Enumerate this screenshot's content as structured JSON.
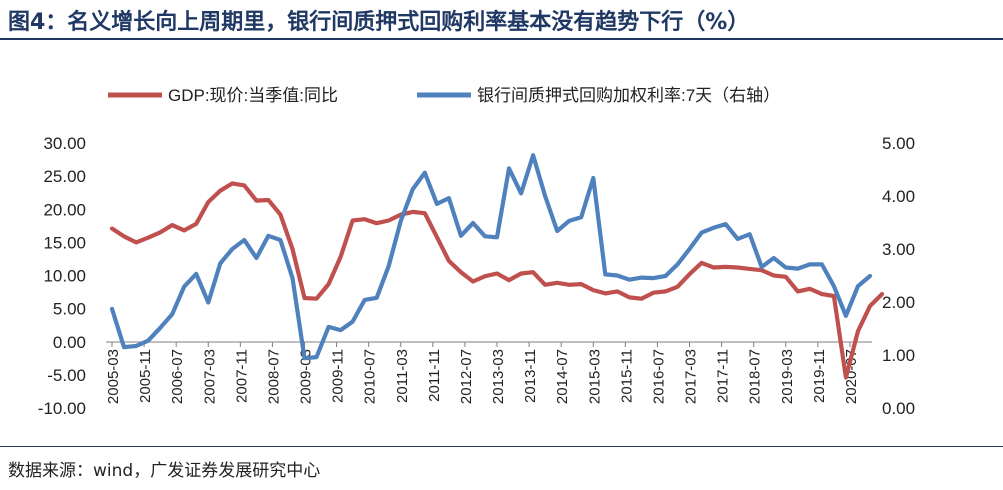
{
  "title": "图4：名义增长向上周期里，银行间质押式回购利率基本没有趋势下行（%）",
  "source": "数据来源：wind，广发证券发展研究中心",
  "colors": {
    "gdp": "#c0504d",
    "repo": "#4f81bd",
    "title": "#1f3864"
  },
  "chart_data": {
    "type": "line",
    "title": "",
    "legend": [
      "GDP:现价:当季值:同比",
      "银行间质押式回购加权利率:7天（右轴）"
    ],
    "legend_position": "top",
    "x_start": "2005-03",
    "x_tick_labels": [
      "2005-03",
      "2005-11",
      "2006-07",
      "2007-03",
      "2007-11",
      "2008-07",
      "2009-03",
      "2009-11",
      "2010-07",
      "2011-03",
      "2011-11",
      "2012-07",
      "2013-03",
      "2013-11",
      "2014-07",
      "2015-03",
      "2015-11",
      "2016-07",
      "2017-03",
      "2017-11",
      "2018-07",
      "2019-03",
      "2019-11",
      "2020-07"
    ],
    "y_left": {
      "min": -10,
      "max": 30,
      "step": 5,
      "tick_labels": [
        "-10.00",
        "-5.00",
        "0.00",
        "5.00",
        "10.00",
        "15.00",
        "20.00",
        "25.00",
        "30.00"
      ]
    },
    "y_right": {
      "min": 0,
      "max": 5,
      "step": 1,
      "tick_labels": [
        "0.00",
        "1.00",
        "2.00",
        "3.00",
        "4.00",
        "5.00"
      ]
    },
    "series": [
      {
        "name": "GDP:现价:当季值:同比",
        "axis": "left",
        "frequency": "quarterly",
        "points": [
          [
            "2005-03",
            17.1
          ],
          [
            "2005-06",
            15.9
          ],
          [
            "2005-09",
            15.0
          ],
          [
            "2005-12",
            15.7
          ],
          [
            "2006-03",
            16.5
          ],
          [
            "2006-06",
            17.6
          ],
          [
            "2006-09",
            16.8
          ],
          [
            "2006-12",
            17.8
          ],
          [
            "2007-03",
            21.1
          ],
          [
            "2007-06",
            22.8
          ],
          [
            "2007-09",
            23.9
          ],
          [
            "2007-12",
            23.6
          ],
          [
            "2008-03",
            21.3
          ],
          [
            "2008-06",
            21.4
          ],
          [
            "2008-09",
            19.2
          ],
          [
            "2008-12",
            14.0
          ],
          [
            "2009-03",
            6.6
          ],
          [
            "2009-06",
            6.5
          ],
          [
            "2009-09",
            8.7
          ],
          [
            "2009-12",
            12.8
          ],
          [
            "2010-03",
            18.3
          ],
          [
            "2010-06",
            18.5
          ],
          [
            "2010-09",
            17.9
          ],
          [
            "2010-12",
            18.3
          ],
          [
            "2011-03",
            19.2
          ],
          [
            "2011-06",
            19.6
          ],
          [
            "2011-09",
            19.4
          ],
          [
            "2011-12",
            15.8
          ],
          [
            "2012-03",
            12.2
          ],
          [
            "2012-06",
            10.5
          ],
          [
            "2012-09",
            9.1
          ],
          [
            "2012-12",
            9.9
          ],
          [
            "2013-03",
            10.3
          ],
          [
            "2013-06",
            9.3
          ],
          [
            "2013-09",
            10.3
          ],
          [
            "2013-12",
            10.5
          ],
          [
            "2014-03",
            8.6
          ],
          [
            "2014-06",
            8.9
          ],
          [
            "2014-09",
            8.6
          ],
          [
            "2014-12",
            8.7
          ],
          [
            "2015-03",
            7.8
          ],
          [
            "2015-06",
            7.3
          ],
          [
            "2015-09",
            7.6
          ],
          [
            "2015-12",
            6.7
          ],
          [
            "2016-03",
            6.5
          ],
          [
            "2016-06",
            7.4
          ],
          [
            "2016-09",
            7.6
          ],
          [
            "2016-12",
            8.3
          ],
          [
            "2017-03",
            10.2
          ],
          [
            "2017-06",
            11.9
          ],
          [
            "2017-09",
            11.2
          ],
          [
            "2017-12",
            11.3
          ],
          [
            "2018-03",
            11.2
          ],
          [
            "2018-06",
            11.0
          ],
          [
            "2018-09",
            10.8
          ],
          [
            "2018-12",
            10.0
          ],
          [
            "2019-03",
            9.8
          ],
          [
            "2019-06",
            7.6
          ],
          [
            "2019-09",
            8.0
          ],
          [
            "2019-12",
            7.2
          ],
          [
            "2020-03",
            6.9
          ],
          [
            "2020-06",
            -5.4
          ],
          [
            "2020-09",
            1.6
          ],
          [
            "2020-12",
            5.4
          ],
          [
            "2021-03",
            7.2
          ]
        ]
      },
      {
        "name": "银行间质押式回购加权利率:7天（右轴）",
        "axis": "right",
        "frequency": "quarterly",
        "points": [
          [
            "2005-03",
            1.87
          ],
          [
            "2005-06",
            1.15
          ],
          [
            "2005-09",
            1.17
          ],
          [
            "2005-12",
            1.27
          ],
          [
            "2006-03",
            1.51
          ],
          [
            "2006-06",
            1.77
          ],
          [
            "2006-09",
            2.29
          ],
          [
            "2006-12",
            2.53
          ],
          [
            "2007-03",
            1.99
          ],
          [
            "2007-06",
            2.73
          ],
          [
            "2007-09",
            3.0
          ],
          [
            "2007-12",
            3.17
          ],
          [
            "2008-03",
            2.83
          ],
          [
            "2008-06",
            3.25
          ],
          [
            "2008-09",
            3.17
          ],
          [
            "2008-12",
            2.45
          ],
          [
            "2009-03",
            0.94
          ],
          [
            "2009-06",
            0.96
          ],
          [
            "2009-09",
            1.53
          ],
          [
            "2009-12",
            1.47
          ],
          [
            "2010-03",
            1.63
          ],
          [
            "2010-06",
            2.04
          ],
          [
            "2010-09",
            2.08
          ],
          [
            "2010-12",
            2.68
          ],
          [
            "2011-03",
            3.53
          ],
          [
            "2011-06",
            4.13
          ],
          [
            "2011-09",
            4.44
          ],
          [
            "2011-12",
            3.85
          ],
          [
            "2012-03",
            3.96
          ],
          [
            "2012-06",
            3.25
          ],
          [
            "2012-09",
            3.49
          ],
          [
            "2012-12",
            3.24
          ],
          [
            "2013-03",
            3.22
          ],
          [
            "2013-06",
            4.52
          ],
          [
            "2013-09",
            4.05
          ],
          [
            "2013-12",
            4.77
          ],
          [
            "2014-03",
            4.0
          ],
          [
            "2014-06",
            3.34
          ],
          [
            "2014-09",
            3.53
          ],
          [
            "2014-12",
            3.6
          ],
          [
            "2015-03",
            4.34
          ],
          [
            "2015-06",
            2.52
          ],
          [
            "2015-09",
            2.5
          ],
          [
            "2015-12",
            2.42
          ],
          [
            "2016-03",
            2.46
          ],
          [
            "2016-06",
            2.45
          ],
          [
            "2016-09",
            2.49
          ],
          [
            "2016-12",
            2.71
          ],
          [
            "2017-03",
            3.0
          ],
          [
            "2017-06",
            3.31
          ],
          [
            "2017-09",
            3.4
          ],
          [
            "2017-12",
            3.47
          ],
          [
            "2018-03",
            3.19
          ],
          [
            "2018-06",
            3.28
          ],
          [
            "2018-09",
            2.66
          ],
          [
            "2018-12",
            2.83
          ],
          [
            "2019-03",
            2.65
          ],
          [
            "2019-06",
            2.63
          ],
          [
            "2019-09",
            2.71
          ],
          [
            "2019-12",
            2.71
          ],
          [
            "2020-03",
            2.3
          ],
          [
            "2020-06",
            1.74
          ],
          [
            "2020-09",
            2.3
          ],
          [
            "2020-12",
            2.49
          ]
        ]
      }
    ]
  }
}
